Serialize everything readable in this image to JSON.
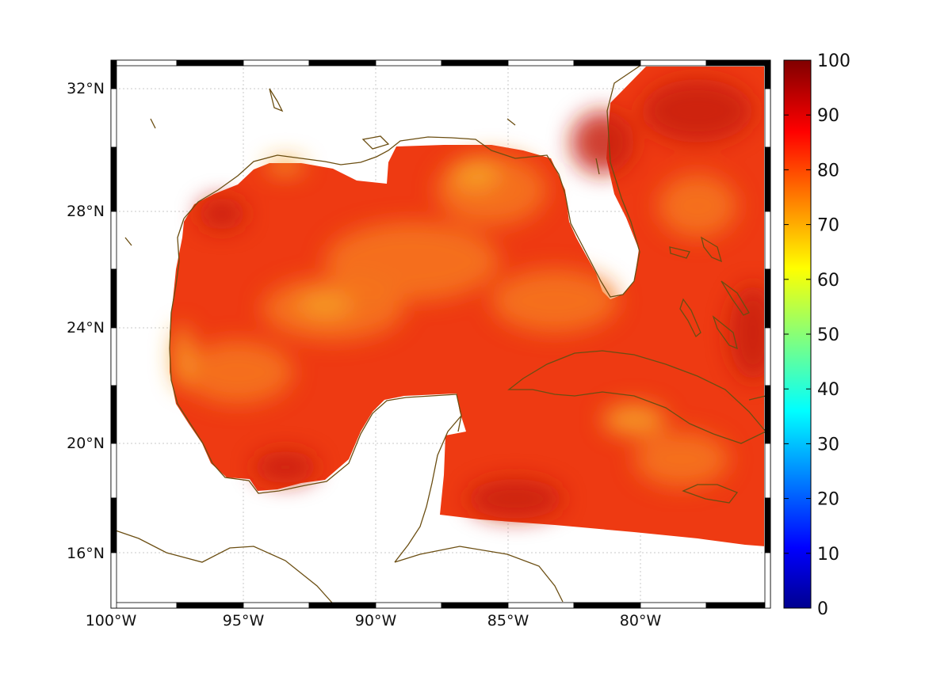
{
  "map": {
    "lon_labels": [
      "100°W",
      "95°W",
      "90°W",
      "85°W",
      "80°W"
    ],
    "lat_labels": [
      "32°N",
      "28°N",
      "24°N",
      "20°N",
      "16°N"
    ],
    "coastline_color": "#6b4e12",
    "frame_colors": {
      "dark": "#000000",
      "light": "#ffffff"
    },
    "field_colors": {
      "base": "#ee3a12",
      "dark_red": "#c81c0e",
      "orange": "#f6781e",
      "yellow_orange": "#f7a32a"
    }
  },
  "colorbar": {
    "tick_labels": [
      "0",
      "10",
      "20",
      "30",
      "40",
      "50",
      "60",
      "70",
      "80",
      "90",
      "100"
    ],
    "colormap": "jet",
    "min": 0,
    "max": 100
  }
}
